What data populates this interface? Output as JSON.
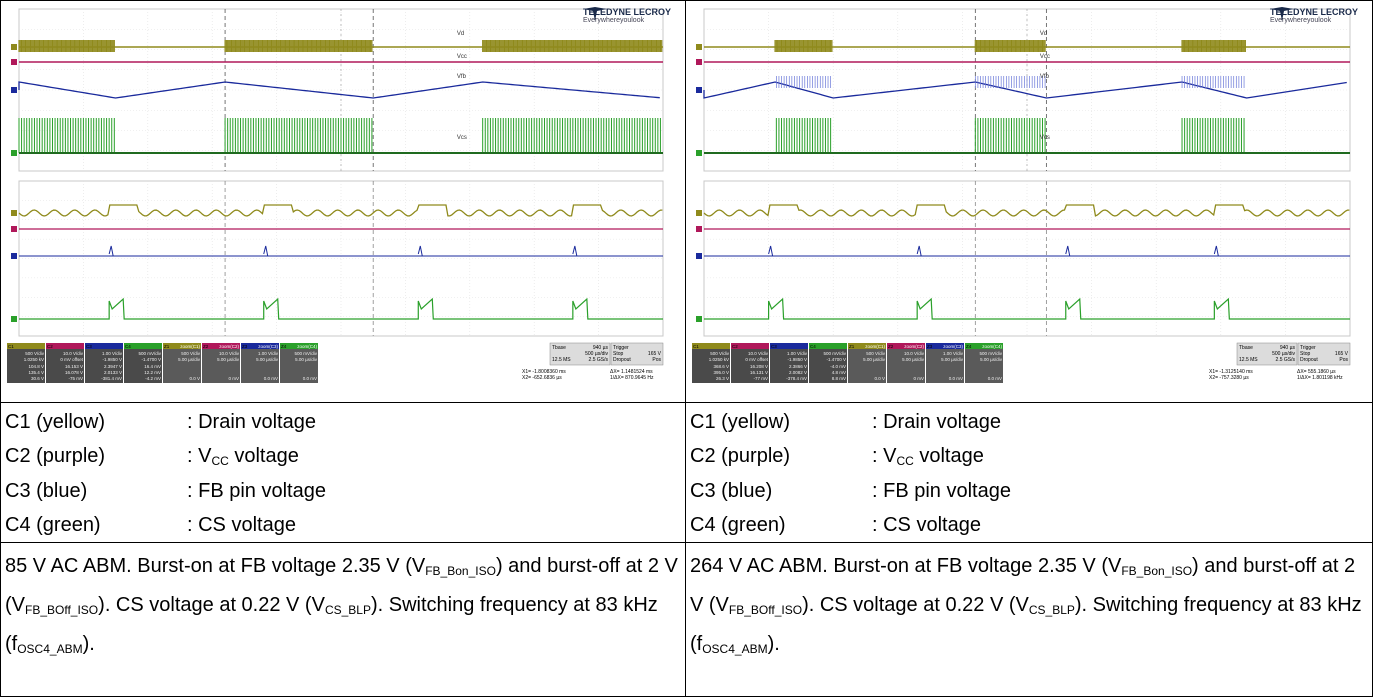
{
  "brand": {
    "name": "TELEDYNE LECROY",
    "tagline": "Everywhereyoulook"
  },
  "colors": {
    "c1": "#8f8a1c",
    "c2": "#b0185a",
    "c3": "#1a2a9c",
    "c4": "#2aa02a"
  },
  "panels": [
    {
      "id": "left",
      "trace_labels": {
        "vd": "Vd",
        "vcc": "Vcc",
        "vfb": "Vfb",
        "vcs": "Vcs"
      },
      "channels": [
        {
          "tag": "C1",
          "vdiv": "500 V/div",
          "offset": "1.0250 kV",
          "m1": "104.8 V",
          "m2": "135.4 V",
          "dy": "30.6 V"
        },
        {
          "tag": "C2",
          "vdiv": "10.0 V/div",
          "offset": "0 mV offset",
          "m1": "16.153 V",
          "m2": "16.078 V",
          "dy": "-75 mV"
        },
        {
          "tag": "C3",
          "vdiv": "1.00 V/div",
          "offset": "-1.9850 V",
          "m1": "2.3947 V",
          "m2": "2.0133 V",
          "dy": "-381.4 mV"
        },
        {
          "tag": "C4",
          "vdiv": "500 mV/div",
          "offset": "-1.4700 V",
          "m1": "16.4 mV",
          "m2": "12.2 mV",
          "dy": "-4.2 mV"
        }
      ],
      "zooms": [
        {
          "tag": "Z1",
          "name": "zoom(C1)",
          "vdiv": "500 V/div",
          "tdiv": "5.00 µs/div",
          "dy": "0.0 V"
        },
        {
          "tag": "Z2",
          "name": "zoom(C2)",
          "vdiv": "10.0 V/div",
          "tdiv": "5.00 µs/div",
          "dy": "0 mV"
        },
        {
          "tag": "Z3",
          "name": "zoom(C3)",
          "vdiv": "1.00 V/div",
          "tdiv": "5.00 µs/div",
          "dy": "0.0 mV"
        },
        {
          "tag": "Z4",
          "name": "zoom(C4)",
          "vdiv": "500 mV/div",
          "tdiv": "5.00 µs/div",
          "dy": "0.0 mV"
        }
      ],
      "timebase": {
        "label": "Tbase",
        "value": "940 µs",
        "tdiv": "500 µs/div",
        "rate": "12.5 MS",
        "gs": "2.5 GS/s"
      },
      "trigger": {
        "label": "Trigger",
        "mode": "Stop",
        "level": "165 V",
        "type": "Dropout",
        "edge": "Pos"
      },
      "cursors": {
        "x1": "-1.8008360 ms",
        "x2": "-652.6836 µs",
        "dx": "1.1481524 ms",
        "inv": "870.9645 Hz"
      },
      "legend": [
        {
          "channel": "C1 (yellow)",
          "desc": ": Drain voltage"
        },
        {
          "channel": "C2 (purple)",
          "desc_pre": ": V",
          "sub": "CC",
          "desc_post": " voltage"
        },
        {
          "channel": "C3 (blue)",
          "desc": ": FB pin voltage"
        },
        {
          "channel": "C4 (green)",
          "desc": ": CS voltage"
        }
      ],
      "note": {
        "p1": "85 V AC ABM. Burst-on at FB voltage 2.35 V (V",
        "s1": "FB_Bon_ISO",
        "p2": ") and burst-off at 2 V (V",
        "s2": "FB_BOff_ISO",
        "p3": "). CS voltage at 0.22 V (V",
        "s3": "CS_BLP",
        "p4": "). Switching frequency at 83 kHz (f",
        "s4": "OSC4_ABM",
        "p5": ")."
      }
    },
    {
      "id": "right",
      "trace_labels": {
        "vd": "Vd",
        "vcc": "Vcc",
        "vfb": "Vfb",
        "vcs": "Vcs"
      },
      "channels": [
        {
          "tag": "C1",
          "vdiv": "500 V/div",
          "offset": "1.0250 kV",
          "m1": "368.6 V",
          "m2": "395.0 V",
          "dy": "26.3 V"
        },
        {
          "tag": "C2",
          "vdiv": "10.0 V/div",
          "offset": "0 mV offset",
          "m1": "16.208 V",
          "m2": "16.131 V",
          "dy": "-77 mV"
        },
        {
          "tag": "C3",
          "vdiv": "1.00 V/div",
          "offset": "-1.9850 V",
          "m1": "2.3866 V",
          "m2": "2.0082 V",
          "dy": "-378.4 mV"
        },
        {
          "tag": "C4",
          "vdiv": "500 mV/div",
          "offset": "-1.4700 V",
          "m1": "-4.0 mV",
          "m2": "4.8 mV",
          "dy": "8.8 mV"
        }
      ],
      "zooms": [
        {
          "tag": "Z1",
          "name": "zoom(C1)",
          "vdiv": "500 V/div",
          "tdiv": "5.00 µs/div",
          "dy": "0.0 V"
        },
        {
          "tag": "Z2",
          "name": "zoom(C2)",
          "vdiv": "10.0 V/div",
          "tdiv": "5.00 µs/div",
          "dy": "0 mV"
        },
        {
          "tag": "Z3",
          "name": "zoom(C3)",
          "vdiv": "1.00 V/div",
          "tdiv": "5.00 µs/div",
          "dy": "0.0 mV"
        },
        {
          "tag": "Z4",
          "name": "zoom(C4)",
          "vdiv": "500 mV/div",
          "tdiv": "5.00 µs/div",
          "dy": "0.0 mV"
        }
      ],
      "timebase": {
        "label": "Tbase",
        "value": "940 µs",
        "tdiv": "500 µs/div",
        "rate": "12.5 MS",
        "gs": "2.5 GS/s"
      },
      "trigger": {
        "label": "Trigger",
        "mode": "Stop",
        "level": "165 V",
        "type": "Dropout",
        "edge": "Pos"
      },
      "cursors": {
        "x1": "-1.3125140 ms",
        "x2": "-757.3280 µs",
        "dx": "555.1860 µs",
        "inv": "1.801198 kHz"
      },
      "legend": [
        {
          "channel": "C1 (yellow)",
          "desc": ": Drain voltage"
        },
        {
          "channel": "C2 (purple)",
          "desc_pre": ": V",
          "sub": "CC",
          "desc_post": " voltage"
        },
        {
          "channel": "C3 (blue)",
          "desc": ": FB pin voltage"
        },
        {
          "channel": "C4 (green)",
          "desc": ": CS voltage"
        }
      ],
      "note": {
        "p1": "264 V AC ABM. Burst-on at FB voltage 2.35 V (V",
        "s1": "FB_Bon_ISO",
        "p2": ") and burst-off at 2 V (V",
        "s2": "FB_BOff_ISO",
        "p3": "). CS voltage at 0.22 V (V",
        "s3": "CS_BLP",
        "p4": "). Switching frequency at 83 kHz (f",
        "s4": "OSC4_ABM",
        "p5": ")."
      }
    }
  ]
}
